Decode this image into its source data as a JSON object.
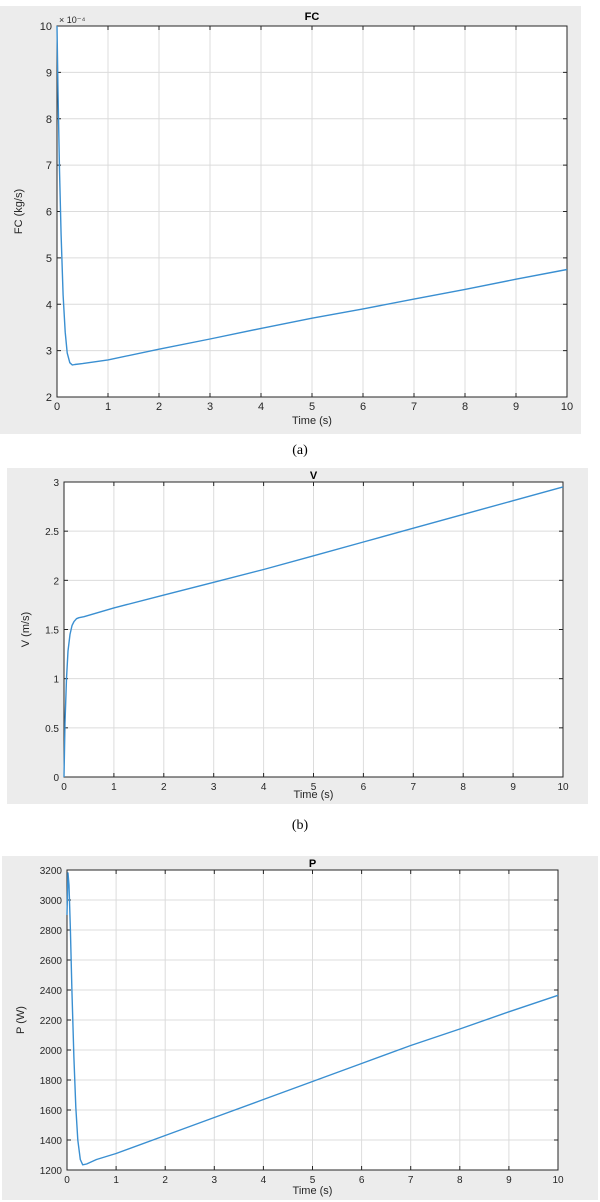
{
  "chart_data": [
    {
      "type": "line",
      "title": "FC",
      "xlabel": "Time (s)",
      "ylabel": "FC (kg/s)",
      "exponent_label": "× 10⁻⁴",
      "caption": "(a)",
      "xlim": [
        0,
        10
      ],
      "ylim": [
        2,
        10
      ],
      "xticks": [
        "0",
        "1",
        "2",
        "3",
        "4",
        "5",
        "6",
        "7",
        "8",
        "9",
        "10"
      ],
      "yticks": [
        "2",
        "3",
        "4",
        "5",
        "6",
        "7",
        "8",
        "9",
        "10"
      ],
      "grid": true,
      "color": "#3a8fd1",
      "series": [
        {
          "x": [
            0,
            0.02,
            0.05,
            0.08,
            0.12,
            0.16,
            0.2,
            0.25,
            0.3,
            0.35,
            0.5,
            1,
            2,
            3,
            4,
            5,
            6,
            7,
            8,
            9,
            10
          ],
          "y": [
            10,
            8.6,
            6.9,
            5.5,
            4.2,
            3.4,
            2.95,
            2.74,
            2.69,
            2.7,
            2.72,
            2.8,
            3.03,
            3.25,
            3.48,
            3.7,
            3.9,
            4.11,
            4.32,
            4.54,
            4.75
          ]
        }
      ]
    },
    {
      "type": "line",
      "title": "V",
      "xlabel": "Time (s)",
      "ylabel": "V (m/s)",
      "caption": "(b)",
      "xlim": [
        0,
        10
      ],
      "ylim": [
        0,
        3
      ],
      "xticks": [
        "0",
        "1",
        "2",
        "3",
        "4",
        "5",
        "6",
        "7",
        "8",
        "9",
        "10"
      ],
      "yticks": [
        "0",
        "0.5",
        "1",
        "1.5",
        "2",
        "2.5",
        "3"
      ],
      "grid": true,
      "color": "#3a8fd1",
      "series": [
        {
          "x": [
            0,
            0.02,
            0.05,
            0.08,
            0.12,
            0.16,
            0.2,
            0.25,
            0.3,
            0.4,
            1,
            2,
            3,
            4,
            5,
            6,
            7,
            8,
            9,
            10
          ],
          "y": [
            0,
            0.55,
            1.0,
            1.28,
            1.45,
            1.54,
            1.58,
            1.61,
            1.62,
            1.63,
            1.72,
            1.85,
            1.98,
            2.11,
            2.25,
            2.39,
            2.53,
            2.67,
            2.81,
            2.95
          ]
        }
      ]
    },
    {
      "type": "line",
      "title": "P",
      "xlabel": "Time (s)",
      "ylabel": "P (W)",
      "xlim": [
        0,
        10
      ],
      "ylim": [
        1200,
        3200
      ],
      "xticks": [
        "0",
        "1",
        "2",
        "3",
        "4",
        "5",
        "6",
        "7",
        "8",
        "9",
        "10"
      ],
      "yticks": [
        "1200",
        "1400",
        "1600",
        "1800",
        "2000",
        "2200",
        "2400",
        "2600",
        "2800",
        "3000",
        "3200"
      ],
      "grid": true,
      "color": "#3a8fd1",
      "series": [
        {
          "x": [
            0,
            0.02,
            0.04,
            0.07,
            0.1,
            0.14,
            0.18,
            0.22,
            0.27,
            0.32,
            0.4,
            0.6,
            1,
            2,
            3,
            4,
            5,
            6,
            7,
            8,
            9,
            10
          ],
          "y": [
            2900,
            3180,
            3100,
            2800,
            2400,
            1950,
            1620,
            1400,
            1270,
            1235,
            1240,
            1270,
            1310,
            1430,
            1550,
            1670,
            1790,
            1910,
            2030,
            2140,
            2255,
            2365
          ]
        }
      ]
    }
  ]
}
